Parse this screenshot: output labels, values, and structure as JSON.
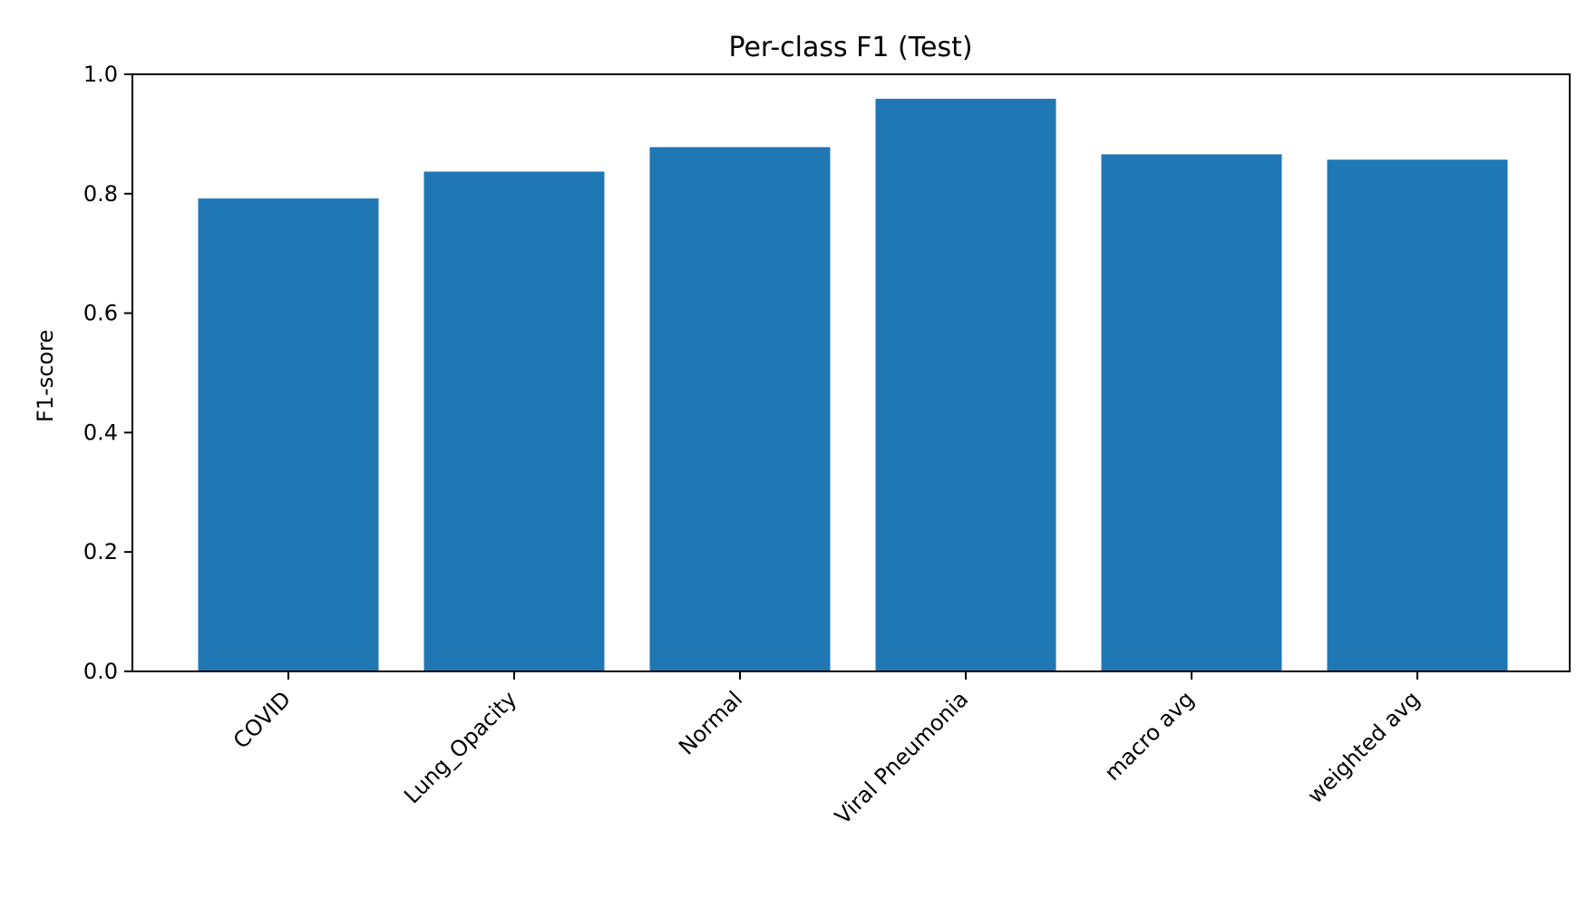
{
  "chart_data": {
    "type": "bar",
    "title": "Per-class F1 (Test)",
    "xlabel": "",
    "ylabel": "F1-score",
    "categories": [
      "COVID",
      "Lung_Opacity",
      "Normal",
      "Viral Pneumonia",
      "macro avg",
      "weighted avg"
    ],
    "values": [
      0.792,
      0.837,
      0.878,
      0.959,
      0.866,
      0.857
    ],
    "ylim": [
      0,
      1.0
    ],
    "yticks": [
      "0.0",
      "0.2",
      "0.4",
      "0.6",
      "0.8",
      "1.0"
    ],
    "grid": false,
    "bar_color": "#1f77b4"
  }
}
